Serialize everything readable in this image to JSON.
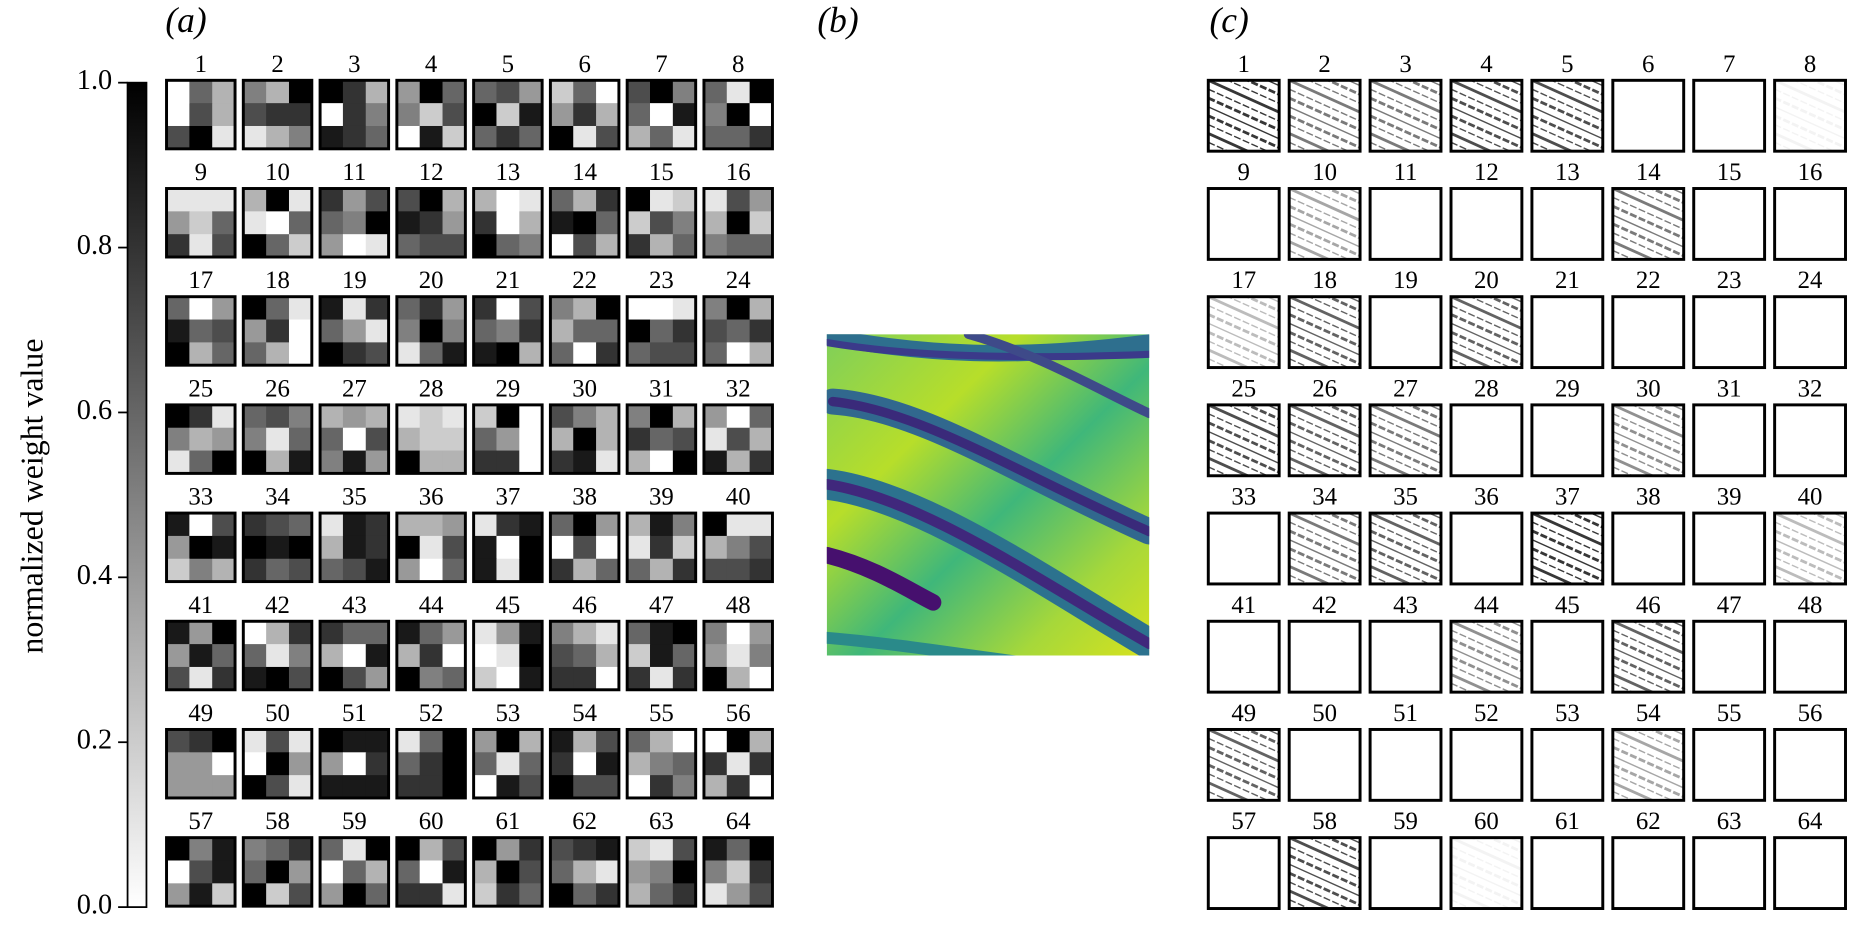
{
  "panel_a": {
    "label": "(a)",
    "colorbar": {
      "label": "normalized weight value",
      "lim": [
        0,
        1
      ],
      "ticks": [
        {
          "value": 0,
          "label": "0.0"
        },
        0.2,
        0.4,
        0.6,
        0.8,
        {
          "value": 1,
          "label": "1.0"
        }
      ]
    },
    "kernels": [
      {
        "title": "1",
        "weights": [
          0.0,
          0.6,
          0.3,
          0.0,
          0.7,
          0.3,
          0.7,
          1.0,
          0.1
        ]
      },
      {
        "title": "2",
        "weights": [
          0.5,
          0.3,
          1.0,
          0.7,
          0.8,
          0.8,
          0.1,
          0.3,
          0.5
        ]
      },
      {
        "title": "3",
        "weights": [
          1.0,
          0.8,
          0.3,
          0.0,
          0.8,
          0.5,
          0.9,
          0.8,
          0.6
        ]
      },
      {
        "title": "4",
        "weights": [
          0.4,
          1.0,
          0.6,
          0.5,
          0.2,
          0.7,
          0.0,
          0.9,
          0.2
        ]
      },
      {
        "title": "5",
        "weights": [
          0.6,
          0.7,
          0.4,
          1.0,
          0.2,
          0.9,
          0.6,
          0.8,
          0.6
        ]
      },
      {
        "title": "6",
        "weights": [
          0.2,
          0.6,
          0.0,
          0.4,
          0.8,
          0.3,
          1.0,
          0.1,
          0.7
        ]
      },
      {
        "title": "7",
        "weights": [
          0.7,
          1.0,
          0.5,
          0.6,
          0.0,
          0.9,
          0.3,
          0.6,
          0.1
        ]
      },
      {
        "title": "8",
        "weights": [
          0.6,
          0.1,
          1.0,
          0.5,
          1.0,
          0.0,
          0.6,
          0.6,
          0.8
        ]
      },
      {
        "title": "9",
        "weights": [
          0.1,
          0.1,
          0.1,
          0.4,
          0.2,
          0.6,
          0.8,
          0.1,
          0.7
        ]
      },
      {
        "title": "10",
        "weights": [
          0.3,
          1.0,
          0.1,
          0.1,
          0.0,
          0.6,
          1.0,
          0.6,
          0.2
        ]
      },
      {
        "title": "11",
        "weights": [
          0.8,
          0.4,
          0.7,
          0.6,
          0.5,
          1.0,
          0.4,
          0.0,
          0.1
        ]
      },
      {
        "title": "12",
        "weights": [
          0.7,
          1.0,
          0.3,
          0.9,
          0.8,
          0.4,
          0.6,
          0.7,
          0.7
        ]
      },
      {
        "title": "13",
        "weights": [
          0.3,
          0.0,
          0.1,
          0.8,
          0.0,
          0.3,
          1.0,
          0.6,
          0.5
        ]
      },
      {
        "title": "14",
        "weights": [
          0.6,
          0.3,
          0.8,
          0.9,
          1.0,
          0.6,
          0.0,
          0.7,
          0.3
        ]
      },
      {
        "title": "15",
        "weights": [
          1.0,
          0.1,
          0.2,
          0.2,
          0.7,
          0.5,
          0.8,
          0.3,
          0.6
        ]
      },
      {
        "title": "16",
        "weights": [
          0.1,
          0.7,
          0.4,
          0.3,
          1.0,
          0.2,
          0.5,
          0.6,
          0.6
        ]
      },
      {
        "title": "17",
        "weights": [
          0.6,
          0.0,
          0.4,
          0.9,
          0.6,
          0.7,
          1.0,
          0.3,
          0.6
        ]
      },
      {
        "title": "18",
        "weights": [
          1.0,
          0.6,
          0.1,
          0.4,
          0.8,
          0.0,
          0.6,
          0.3,
          0.0
        ]
      },
      {
        "title": "19",
        "weights": [
          0.9,
          0.1,
          0.8,
          0.6,
          0.4,
          0.1,
          1.0,
          0.8,
          0.7
        ]
      },
      {
        "title": "20",
        "weights": [
          0.6,
          0.8,
          0.4,
          0.5,
          1.0,
          0.5,
          0.1,
          0.6,
          0.9
        ]
      },
      {
        "title": "21",
        "weights": [
          0.8,
          0.0,
          0.7,
          0.6,
          0.5,
          0.8,
          0.9,
          1.0,
          0.3
        ]
      },
      {
        "title": "22",
        "weights": [
          0.5,
          0.3,
          1.0,
          0.3,
          0.6,
          0.6,
          0.6,
          0.0,
          0.8
        ]
      },
      {
        "title": "23",
        "weights": [
          0.0,
          0.0,
          0.1,
          1.0,
          0.6,
          0.8,
          0.6,
          0.7,
          0.7
        ]
      },
      {
        "title": "24",
        "weights": [
          0.5,
          1.0,
          0.3,
          0.7,
          0.6,
          0.8,
          0.6,
          0.0,
          0.3
        ]
      },
      {
        "title": "25",
        "weights": [
          1.0,
          0.8,
          0.1,
          0.5,
          0.3,
          0.4,
          0.1,
          0.6,
          1.0
        ]
      },
      {
        "title": "26",
        "weights": [
          0.6,
          0.7,
          0.5,
          0.5,
          0.1,
          0.6,
          1.0,
          0.3,
          0.9
        ]
      },
      {
        "title": "27",
        "weights": [
          0.3,
          0.4,
          0.3,
          0.6,
          0.0,
          0.7,
          0.5,
          0.9,
          0.4
        ]
      },
      {
        "title": "28",
        "weights": [
          0.1,
          0.2,
          0.1,
          0.3,
          0.2,
          0.2,
          1.0,
          0.3,
          0.3
        ]
      },
      {
        "title": "29",
        "weights": [
          0.2,
          1.0,
          0.0,
          0.6,
          0.4,
          0.0,
          0.8,
          0.8,
          0.0
        ]
      },
      {
        "title": "30",
        "weights": [
          0.7,
          0.5,
          0.3,
          0.3,
          1.0,
          0.3,
          0.8,
          0.9,
          0.1
        ]
      },
      {
        "title": "31",
        "weights": [
          0.5,
          1.0,
          0.3,
          0.8,
          0.6,
          0.7,
          0.3,
          0.0,
          1.0
        ]
      },
      {
        "title": "32",
        "weights": [
          0.4,
          0.0,
          0.6,
          0.1,
          0.7,
          0.3,
          0.9,
          0.3,
          0.8
        ]
      },
      {
        "title": "33",
        "weights": [
          0.9,
          0.0,
          0.7,
          0.4,
          1.0,
          0.9,
          0.2,
          0.5,
          0.3
        ]
      },
      {
        "title": "34",
        "weights": [
          0.8,
          0.7,
          0.6,
          1.0,
          0.9,
          1.0,
          0.8,
          0.6,
          0.7
        ]
      },
      {
        "title": "35",
        "weights": [
          0.1,
          0.9,
          0.8,
          0.3,
          0.9,
          0.8,
          0.6,
          0.7,
          0.9
        ]
      },
      {
        "title": "36",
        "weights": [
          0.3,
          0.3,
          0.4,
          1.0,
          0.1,
          0.7,
          0.4,
          0.0,
          0.6
        ]
      },
      {
        "title": "37",
        "weights": [
          0.1,
          0.8,
          0.9,
          0.9,
          0.0,
          1.0,
          0.9,
          0.1,
          1.0
        ]
      },
      {
        "title": "38",
        "weights": [
          0.6,
          1.0,
          0.4,
          0.0,
          0.7,
          0.0,
          0.8,
          0.3,
          0.6
        ]
      },
      {
        "title": "39",
        "weights": [
          0.3,
          0.9,
          0.5,
          0.1,
          0.8,
          0.2,
          0.6,
          0.3,
          0.8
        ]
      },
      {
        "title": "40",
        "weights": [
          1.0,
          0.1,
          0.1,
          0.3,
          0.5,
          0.7,
          0.7,
          0.7,
          0.8
        ]
      },
      {
        "title": "41",
        "weights": [
          0.9,
          0.4,
          1.0,
          0.4,
          0.9,
          0.6,
          0.7,
          0.1,
          0.8
        ]
      },
      {
        "title": "42",
        "weights": [
          0.0,
          0.3,
          0.8,
          0.6,
          0.1,
          0.5,
          0.9,
          1.0,
          0.7
        ]
      },
      {
        "title": "43",
        "weights": [
          0.8,
          0.6,
          0.6,
          0.3,
          0.0,
          0.9,
          1.0,
          0.7,
          0.4
        ]
      },
      {
        "title": "44",
        "weights": [
          0.9,
          0.6,
          0.4,
          0.3,
          0.8,
          0.0,
          1.0,
          0.5,
          0.6
        ]
      },
      {
        "title": "45",
        "weights": [
          0.1,
          0.4,
          0.9,
          0.0,
          0.1,
          1.0,
          0.2,
          0.0,
          0.9
        ]
      },
      {
        "title": "46",
        "weights": [
          0.5,
          0.3,
          0.1,
          0.7,
          0.6,
          0.3,
          0.8,
          0.8,
          0.0
        ]
      },
      {
        "title": "47",
        "weights": [
          0.6,
          0.9,
          1.0,
          0.2,
          0.9,
          0.6,
          0.8,
          0.1,
          0.8
        ]
      },
      {
        "title": "48",
        "weights": [
          0.5,
          0.0,
          0.4,
          0.4,
          0.1,
          0.5,
          1.0,
          0.3,
          0.0
        ]
      },
      {
        "title": "49",
        "weights": [
          0.7,
          0.8,
          1.0,
          0.4,
          0.4,
          0.0,
          0.4,
          0.4,
          0.4
        ]
      },
      {
        "title": "50",
        "weights": [
          0.1,
          0.7,
          0.1,
          0.0,
          1.0,
          0.4,
          1.0,
          0.7,
          0.1
        ]
      },
      {
        "title": "51",
        "weights": [
          1.0,
          0.9,
          0.9,
          0.4,
          0.0,
          0.8,
          0.9,
          0.9,
          0.9
        ]
      },
      {
        "title": "52",
        "weights": [
          0.1,
          0.6,
          1.0,
          0.6,
          0.8,
          1.0,
          0.8,
          0.8,
          1.0
        ]
      },
      {
        "title": "53",
        "weights": [
          0.4,
          1.0,
          0.3,
          0.6,
          0.1,
          0.6,
          0.0,
          0.9,
          0.7
        ]
      },
      {
        "title": "54",
        "weights": [
          0.9,
          0.3,
          0.7,
          0.8,
          0.0,
          0.9,
          1.0,
          0.7,
          0.7
        ]
      },
      {
        "title": "55",
        "weights": [
          0.6,
          0.3,
          0.0,
          0.3,
          0.5,
          0.6,
          0.0,
          0.8,
          0.5
        ]
      },
      {
        "title": "56",
        "weights": [
          0.0,
          1.0,
          0.3,
          0.8,
          0.1,
          0.8,
          0.3,
          0.8,
          0.0
        ]
      },
      {
        "title": "57",
        "weights": [
          1.0,
          0.5,
          0.9,
          0.0,
          0.7,
          0.9,
          0.4,
          0.9,
          0.2
        ]
      },
      {
        "title": "58",
        "weights": [
          0.5,
          0.6,
          0.8,
          0.6,
          1.0,
          0.4,
          1.0,
          0.2,
          0.7
        ]
      },
      {
        "title": "59",
        "weights": [
          0.6,
          0.1,
          1.0,
          0.0,
          0.6,
          0.3,
          0.4,
          1.0,
          0.6
        ]
      },
      {
        "title": "60",
        "weights": [
          1.0,
          0.3,
          0.7,
          0.6,
          0.0,
          0.9,
          0.8,
          0.8,
          0.1
        ]
      },
      {
        "title": "61",
        "weights": [
          1.0,
          0.4,
          0.8,
          0.3,
          1.0,
          0.7,
          0.2,
          0.8,
          0.6
        ]
      },
      {
        "title": "62",
        "weights": [
          0.7,
          0.8,
          0.9,
          0.6,
          0.3,
          0.1,
          1.0,
          0.6,
          0.8
        ]
      },
      {
        "title": "63",
        "weights": [
          0.2,
          0.1,
          0.7,
          0.4,
          0.5,
          1.0,
          0.3,
          0.6,
          0.8
        ]
      },
      {
        "title": "64",
        "weights": [
          0.9,
          0.6,
          1.0,
          0.5,
          0.2,
          0.8,
          0.1,
          0.4,
          0.7
        ]
      }
    ]
  },
  "panel_b": {
    "label": "(b)"
  },
  "panel_c": {
    "label": "(c)",
    "maps": [
      {
        "title": "1",
        "intensity": 0.9
      },
      {
        "title": "2",
        "intensity": 0.6
      },
      {
        "title": "3",
        "intensity": 0.6
      },
      {
        "title": "4",
        "intensity": 0.8
      },
      {
        "title": "5",
        "intensity": 0.8
      },
      {
        "title": "6",
        "intensity": 0
      },
      {
        "title": "7",
        "intensity": 0
      },
      {
        "title": "8",
        "intensity": 0.05
      },
      {
        "title": "9",
        "intensity": 0
      },
      {
        "title": "10",
        "intensity": 0.4
      },
      {
        "title": "11",
        "intensity": 0
      },
      {
        "title": "12",
        "intensity": 0
      },
      {
        "title": "13",
        "intensity": 0
      },
      {
        "title": "14",
        "intensity": 0.6
      },
      {
        "title": "15",
        "intensity": 0
      },
      {
        "title": "16",
        "intensity": 0
      },
      {
        "title": "17",
        "intensity": 0.3
      },
      {
        "title": "18",
        "intensity": 0.7
      },
      {
        "title": "19",
        "intensity": 0
      },
      {
        "title": "20",
        "intensity": 0.7
      },
      {
        "title": "21",
        "intensity": 0
      },
      {
        "title": "22",
        "intensity": 0
      },
      {
        "title": "23",
        "intensity": 0
      },
      {
        "title": "24",
        "intensity": 0
      },
      {
        "title": "25",
        "intensity": 0.8
      },
      {
        "title": "26",
        "intensity": 0.7
      },
      {
        "title": "27",
        "intensity": 0.6
      },
      {
        "title": "28",
        "intensity": 0
      },
      {
        "title": "29",
        "intensity": 0
      },
      {
        "title": "30",
        "intensity": 0.5
      },
      {
        "title": "31",
        "intensity": 0
      },
      {
        "title": "32",
        "intensity": 0
      },
      {
        "title": "33",
        "intensity": 0
      },
      {
        "title": "34",
        "intensity": 0.6
      },
      {
        "title": "35",
        "intensity": 0.7
      },
      {
        "title": "36",
        "intensity": 0
      },
      {
        "title": "37",
        "intensity": 0.9
      },
      {
        "title": "38",
        "intensity": 0
      },
      {
        "title": "39",
        "intensity": 0
      },
      {
        "title": "40",
        "intensity": 0.3
      },
      {
        "title": "41",
        "intensity": 0
      },
      {
        "title": "42",
        "intensity": 0
      },
      {
        "title": "43",
        "intensity": 0
      },
      {
        "title": "44",
        "intensity": 0.5
      },
      {
        "title": "45",
        "intensity": 0
      },
      {
        "title": "46",
        "intensity": 0.7
      },
      {
        "title": "47",
        "intensity": 0
      },
      {
        "title": "48",
        "intensity": 0
      },
      {
        "title": "49",
        "intensity": 0.7
      },
      {
        "title": "50",
        "intensity": 0
      },
      {
        "title": "51",
        "intensity": 0
      },
      {
        "title": "52",
        "intensity": 0
      },
      {
        "title": "53",
        "intensity": 0
      },
      {
        "title": "54",
        "intensity": 0.4
      },
      {
        "title": "55",
        "intensity": 0
      },
      {
        "title": "56",
        "intensity": 0
      },
      {
        "title": "57",
        "intensity": 0
      },
      {
        "title": "58",
        "intensity": 0.8
      },
      {
        "title": "59",
        "intensity": 0
      },
      {
        "title": "60",
        "intensity": 0.05
      },
      {
        "title": "61",
        "intensity": 0
      },
      {
        "title": "62",
        "intensity": 0
      },
      {
        "title": "63",
        "intensity": 0
      },
      {
        "title": "64",
        "intensity": 0
      }
    ]
  }
}
